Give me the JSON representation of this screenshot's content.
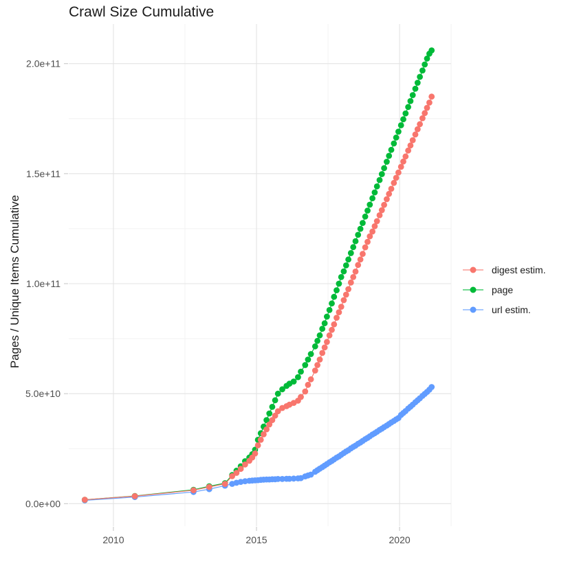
{
  "header": {
    "title": "Crawl Size Cumulative"
  },
  "axes": {
    "y_title": "Pages / Unique Items Cumulative",
    "x_title": ""
  },
  "chart_data": {
    "type": "line",
    "title": "Crawl Size Cumulative",
    "xlabel": "",
    "ylabel": "Pages / Unique Items Cumulative",
    "legend_position": "right",
    "grid": true,
    "xlim": [
      2008.44,
      2021.8
    ],
    "ylim": [
      -10200000000.0,
      218000000000.0
    ],
    "x_ticks": [
      {
        "label": "2010",
        "value": 2010
      },
      {
        "label": "2015",
        "value": 2015
      },
      {
        "label": "2020",
        "value": 2020
      }
    ],
    "x_minor": [
      2012.5,
      2017.5
    ],
    "y_ticks": [
      {
        "label": "0.0e+00",
        "value": 0
      },
      {
        "label": "5.0e+10",
        "value": 50000000000.0
      },
      {
        "label": "1.0e+11",
        "value": 100000000000.0
      },
      {
        "label": "1.5e+11",
        "value": 150000000000.0
      },
      {
        "label": "2.0e+11",
        "value": 200000000000.0
      }
    ],
    "y_minor": [
      25000000000.0,
      75000000000.0,
      125000000000.0,
      175000000000.0
    ],
    "x": [
      2009.0,
      2010.75,
      2012.8,
      2013.35,
      2013.9,
      2014.15,
      2014.3,
      2014.45,
      2014.6,
      2014.75,
      2014.85,
      2014.95,
      2015.05,
      2015.15,
      2015.25,
      2015.35,
      2015.45,
      2015.55,
      2015.65,
      2015.75,
      2015.9,
      2016.05,
      2016.15,
      2016.3,
      2016.45,
      2016.55,
      2016.7,
      2016.8,
      2016.9,
      2017.05,
      2017.13,
      2017.21,
      2017.3,
      2017.38,
      2017.46,
      2017.55,
      2017.63,
      2017.71,
      2017.8,
      2017.88,
      2017.96,
      2018.05,
      2018.13,
      2018.21,
      2018.3,
      2018.38,
      2018.46,
      2018.55,
      2018.63,
      2018.71,
      2018.8,
      2018.88,
      2018.96,
      2019.05,
      2019.13,
      2019.21,
      2019.3,
      2019.38,
      2019.46,
      2019.55,
      2019.63,
      2019.71,
      2019.8,
      2019.88,
      2019.96,
      2020.05,
      2020.13,
      2020.21,
      2020.3,
      2020.38,
      2020.46,
      2020.55,
      2020.63,
      2020.71,
      2020.8,
      2020.88,
      2020.96,
      2021.04,
      2021.12
    ],
    "series": [
      {
        "name": "digest estim.",
        "color": "#F8766D",
        "values": [
          1800000000.0,
          3400000000.0,
          6100000000.0,
          7600000000.0,
          9000000000.0,
          12500000000.0,
          14000000000.0,
          15800000000.0,
          17800000000.0,
          19500000000.0,
          21000000000.0,
          22800000000.0,
          26500000000.0,
          29000000000.0,
          31500000000.0,
          33800000000.0,
          36000000000.0,
          38000000000.0,
          40000000000.0,
          42000000000.0,
          43500000000.0,
          44300000000.0,
          45000000000.0,
          45800000000.0,
          46800000000.0,
          48500000000.0,
          51000000000.0,
          54000000000.0,
          56500000000.0,
          60500000000.0,
          63000000000.0,
          65500000000.0,
          68500000000.0,
          71000000000.0,
          73500000000.0,
          76500000000.0,
          79000000000.0,
          81500000000.0,
          84500000000.0,
          87000000000.0,
          89500000000.0,
          92500000000.0,
          95000000000.0,
          97500000000.0,
          100500000000.0,
          103000000000.0,
          105500000000.0,
          108500000000.0,
          111000000000.0,
          113500000000.0,
          116500000000.0,
          119000000000.0,
          121500000000.0,
          123700000000.0,
          126100000000.0,
          128400000000.0,
          131100000000.0,
          133400000000.0,
          135800000000.0,
          138400000000.0,
          140800000000.0,
          143100000000.0,
          145800000000.0,
          148100000000.0,
          150500000000.0,
          153100000000.0,
          155500000000.0,
          157800000000.0,
          160500000000.0,
          162800000000.0,
          165200000000.0,
          167800000000.0,
          170200000000.0,
          172500000000.0,
          175200000000.0,
          177500000000.0,
          179900000000.0,
          182300000000.0,
          185000000000.0
        ]
      },
      {
        "name": "page",
        "color": "#00BA38",
        "values": [
          1800000000.0,
          3500000000.0,
          6300000000.0,
          7900000000.0,
          9300000000.0,
          13000000000.0,
          15000000000.0,
          17000000000.0,
          19300000000.0,
          21000000000.0,
          22500000000.0,
          24500000000.0,
          29000000000.0,
          32000000000.0,
          35000000000.0,
          38000000000.0,
          41000000000.0,
          44000000000.0,
          47000000000.0,
          50000000000.0,
          52000000000.0,
          53500000000.0,
          54500000000.0,
          55500000000.0,
          57500000000.0,
          60000000000.0,
          63000000000.0,
          65500000000.0,
          68000000000.0,
          71500000000.0,
          74000000000.0,
          76500000000.0,
          79500000000.0,
          82000000000.0,
          85000000000.0,
          88000000000.0,
          91000000000.0,
          94000000000.0,
          97000000000.0,
          100000000000.0,
          103000000000.0,
          105600000000.0,
          108300000000.0,
          111000000000.0,
          113900000000.0,
          116600000000.0,
          119300000000.0,
          122200000000.0,
          124900000000.0,
          127600000000.0,
          130500000000.0,
          133200000000.0,
          135900000000.0,
          138800000000.0,
          141500000000.0,
          144200000000.0,
          147100000000.0,
          149800000000.0,
          152500000000.0,
          155400000000.0,
          158100000000.0,
          160800000000.0,
          163700000000.0,
          166400000000.0,
          169100000000.0,
          172000000000.0,
          174700000000.0,
          177400000000.0,
          180300000000.0,
          183000000000.0,
          185700000000.0,
          188600000000.0,
          191300000000.0,
          194000000000.0,
          196900000000.0,
          199600000000.0,
          202300000000.0,
          204500000000.0,
          206000000000.0
        ]
      },
      {
        "name": "url estim.",
        "color": "#619CFF",
        "values": [
          1500000000.0,
          3000000000.0,
          5300000000.0,
          6600000000.0,
          8200000000.0,
          9000000000.0,
          9500000000.0,
          9900000000.0,
          10200000000.0,
          10400000000.0,
          10500000000.0,
          10600000000.0,
          10700000000.0,
          10800000000.0,
          10900000000.0,
          11000000000.0,
          11000000000.0,
          11100000000.0,
          11100000000.0,
          11200000000.0,
          11200000000.0,
          11300000000.0,
          11300000000.0,
          11400000000.0,
          11500000000.0,
          11600000000.0,
          12400000000.0,
          12800000000.0,
          13200000000.0,
          14500000000.0,
          15200000000.0,
          15900000000.0,
          16600000000.0,
          17300000000.0,
          18000000000.0,
          18800000000.0,
          19400000000.0,
          20100000000.0,
          20900000000.0,
          21500000000.0,
          22200000000.0,
          23000000000.0,
          23700000000.0,
          24300000000.0,
          25100000000.0,
          25800000000.0,
          26400000000.0,
          27200000000.0,
          27800000000.0,
          28500000000.0,
          29300000000.0,
          29900000000.0,
          30600000000.0,
          31400000000.0,
          32000000000.0,
          32700000000.0,
          33500000000.0,
          34100000000.0,
          34800000000.0,
          35500000000.0,
          36200000000.0,
          36900000000.0,
          37600000000.0,
          38300000000.0,
          38900000000.0,
          40300000000.0,
          41200000000.0,
          42100000000.0,
          43200000000.0,
          44100000000.0,
          45000000000.0,
          46100000000.0,
          47000000000.0,
          47900000000.0,
          49000000000.0,
          49900000000.0,
          50800000000.0,
          51800000000.0,
          53000000000.0
        ]
      }
    ]
  }
}
